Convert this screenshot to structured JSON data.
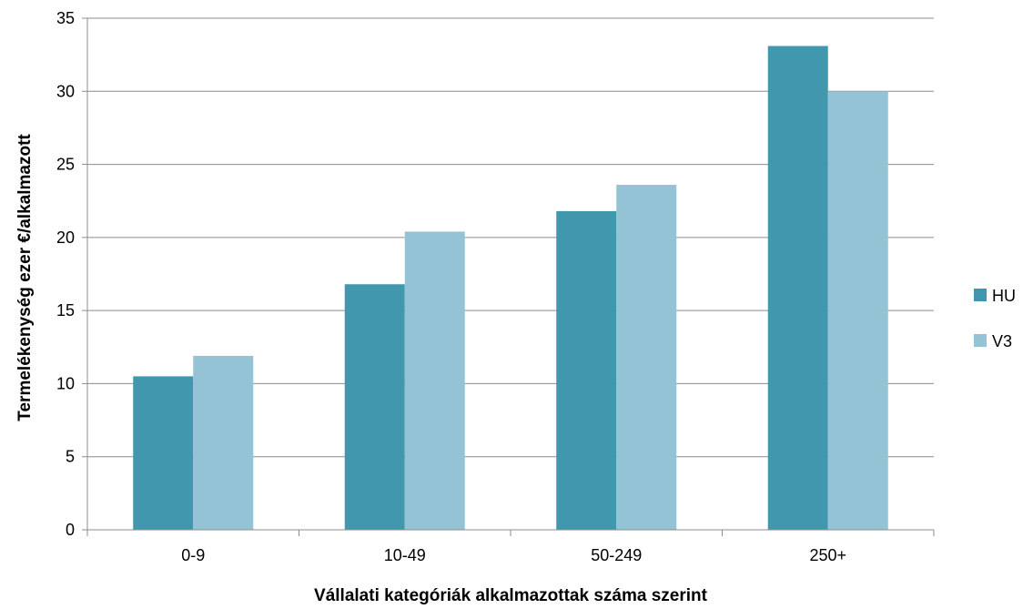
{
  "chart_data": {
    "type": "bar",
    "title": "",
    "xlabel": "Vállalati kategóriák alkalmazottak száma szerint",
    "ylabel": "Termelékenység ezer €/alkalmazott",
    "categories": [
      "0-9",
      "10-49",
      "50-249",
      "250+"
    ],
    "series": [
      {
        "name": "HU",
        "values": [
          10.5,
          16.8,
          21.8,
          33.1
        ],
        "color": "#4197AE"
      },
      {
        "name": "V3",
        "values": [
          11.9,
          20.4,
          23.6,
          30.0
        ],
        "color": "#93C3D4"
      }
    ],
    "ylim": [
      0,
      35
    ],
    "yticks": [
      0,
      5,
      10,
      15,
      20,
      25,
      30,
      35
    ],
    "grid": true,
    "legend_position": "right"
  }
}
